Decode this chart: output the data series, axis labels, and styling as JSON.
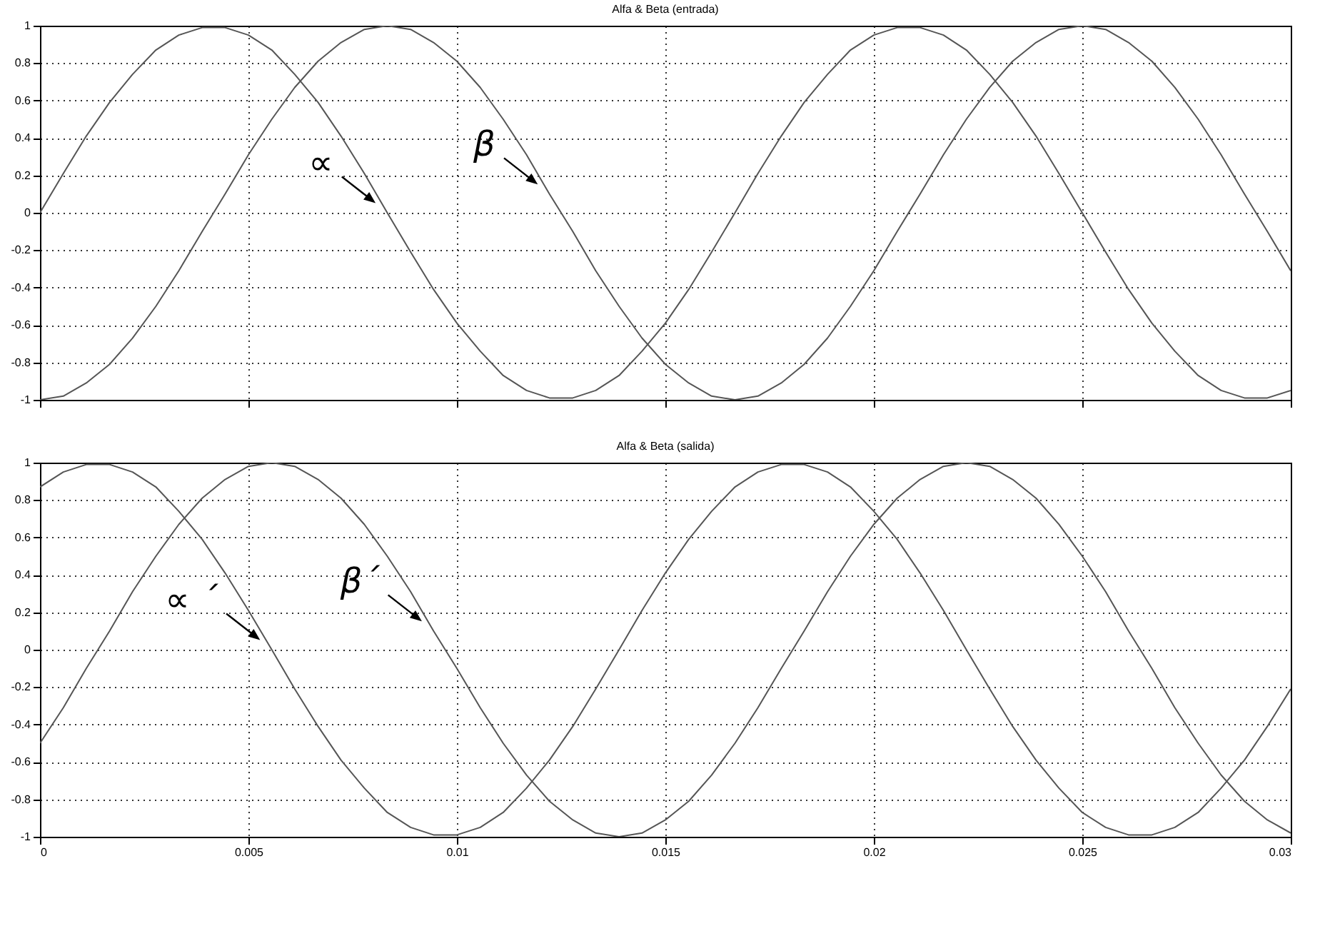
{
  "chart_data": [
    {
      "type": "line",
      "title": "Alfa & Beta (entrada)",
      "x": [
        0,
        0.00056,
        0.00111,
        0.00167,
        0.00222,
        0.00278,
        0.00333,
        0.00389,
        0.00444,
        0.005,
        0.00556,
        0.00611,
        0.00667,
        0.00722,
        0.00778,
        0.00833,
        0.00889,
        0.00944,
        0.01,
        0.01056,
        0.01111,
        0.01167,
        0.01222,
        0.01278,
        0.01333,
        0.01389,
        0.01444,
        0.015,
        0.01556,
        0.01611,
        0.01667,
        0.01722,
        0.01778,
        0.01833,
        0.01889,
        0.01944,
        0.02,
        0.02056,
        0.02111,
        0.02167,
        0.02222,
        0.02278,
        0.02333,
        0.02389,
        0.02444,
        0.025,
        0.02556,
        0.02611,
        0.02667,
        0.02722,
        0.02778,
        0.02833,
        0.02889,
        0.02944,
        0.03
      ],
      "series": [
        {
          "name": "∝",
          "color": "#555555",
          "values": [
            0,
            0.21,
            0.41,
            0.59,
            0.74,
            0.87,
            0.95,
            0.99,
            0.99,
            0.95,
            0.87,
            0.74,
            0.59,
            0.41,
            0.21,
            0,
            -0.21,
            -0.41,
            -0.59,
            -0.74,
            -0.87,
            -0.95,
            -0.99,
            -0.99,
            -0.95,
            -0.87,
            -0.74,
            -0.59,
            -0.41,
            -0.21,
            0,
            0.21,
            0.41,
            0.59,
            0.74,
            0.87,
            0.95,
            0.99,
            0.99,
            0.95,
            0.87,
            0.74,
            0.59,
            0.41,
            0.21,
            0,
            -0.21,
            -0.41,
            -0.59,
            -0.74,
            -0.87,
            -0.95,
            -0.99,
            -0.99,
            -0.95
          ]
        },
        {
          "name": "β",
          "color": "#555555",
          "values": [
            -1,
            -0.98,
            -0.91,
            -0.81,
            -0.67,
            -0.5,
            -0.31,
            -0.1,
            0.1,
            0.31,
            0.5,
            0.67,
            0.81,
            0.91,
            0.98,
            1,
            0.98,
            0.91,
            0.81,
            0.67,
            0.5,
            0.31,
            0.1,
            -0.1,
            -0.31,
            -0.5,
            -0.67,
            -0.81,
            -0.91,
            -0.98,
            -1,
            -0.98,
            -0.91,
            -0.81,
            -0.67,
            -0.5,
            -0.31,
            -0.1,
            0.1,
            0.31,
            0.5,
            0.67,
            0.81,
            0.91,
            0.98,
            1,
            0.98,
            0.91,
            0.81,
            0.67,
            0.5,
            0.31,
            0.1,
            -0.1,
            -0.31
          ]
        }
      ],
      "xlim": [
        0,
        0.03
      ],
      "ylim": [
        -1,
        1
      ],
      "xticks": [
        0,
        0.005,
        0.01,
        0.015,
        0.02,
        0.025,
        0.03
      ],
      "yticks": [
        -1,
        -0.8,
        -0.6,
        -0.4,
        -0.2,
        0,
        0.2,
        0.4,
        0.6,
        0.8,
        1
      ],
      "grid": true,
      "line_style": "solid",
      "tick_labels": "y"
    },
    {
      "type": "line",
      "title": "Alfa & Beta (salida)",
      "x": [
        0,
        0.00056,
        0.00111,
        0.00167,
        0.00222,
        0.00278,
        0.00333,
        0.00389,
        0.00444,
        0.005,
        0.00556,
        0.00611,
        0.00667,
        0.00722,
        0.00778,
        0.00833,
        0.00889,
        0.00944,
        0.01,
        0.01056,
        0.01111,
        0.01167,
        0.01222,
        0.01278,
        0.01333,
        0.01389,
        0.01444,
        0.015,
        0.01556,
        0.01611,
        0.01667,
        0.01722,
        0.01778,
        0.01833,
        0.01889,
        0.01944,
        0.02,
        0.02056,
        0.02111,
        0.02167,
        0.02222,
        0.02278,
        0.02333,
        0.02389,
        0.02444,
        0.025,
        0.02556,
        0.02611,
        0.02667,
        0.02722,
        0.02778,
        0.02833,
        0.02889,
        0.02944,
        0.03
      ],
      "series": [
        {
          "name": "∝ ´",
          "color": "#555555",
          "values": [
            0.87,
            0.95,
            0.99,
            0.99,
            0.95,
            0.87,
            0.74,
            0.59,
            0.41,
            0.21,
            0,
            -0.21,
            -0.41,
            -0.59,
            -0.74,
            -0.87,
            -0.95,
            -0.99,
            -0.99,
            -0.95,
            -0.87,
            -0.74,
            -0.59,
            -0.41,
            -0.21,
            0,
            0.21,
            0.41,
            0.59,
            0.74,
            0.87,
            0.95,
            0.99,
            0.99,
            0.95,
            0.87,
            0.74,
            0.59,
            0.41,
            0.21,
            0,
            -0.21,
            -0.41,
            -0.59,
            -0.74,
            -0.87,
            -0.95,
            -0.99,
            -0.99,
            -0.95,
            -0.87,
            -0.74,
            -0.59,
            -0.41,
            -0.21
          ]
        },
        {
          "name": "β´",
          "color": "#555555",
          "values": [
            -0.5,
            -0.31,
            -0.1,
            0.1,
            0.31,
            0.5,
            0.67,
            0.81,
            0.91,
            0.98,
            1,
            0.98,
            0.91,
            0.81,
            0.67,
            0.5,
            0.31,
            0.1,
            -0.1,
            -0.31,
            -0.5,
            -0.67,
            -0.81,
            -0.91,
            -0.98,
            -1,
            -0.98,
            -0.91,
            -0.81,
            -0.67,
            -0.5,
            -0.31,
            -0.1,
            0.1,
            0.31,
            0.5,
            0.67,
            0.81,
            0.91,
            0.98,
            1,
            0.98,
            0.91,
            0.81,
            0.67,
            0.5,
            0.31,
            0.1,
            -0.1,
            -0.31,
            -0.5,
            -0.67,
            -0.81,
            -0.91,
            -0.98
          ]
        }
      ],
      "xlim": [
        0,
        0.03
      ],
      "ylim": [
        -1,
        1
      ],
      "xticks": [
        0,
        0.005,
        0.01,
        0.015,
        0.02,
        0.025,
        0.03
      ],
      "yticks": [
        -1,
        -0.8,
        -0.6,
        -0.4,
        -0.2,
        0,
        0.2,
        0.4,
        0.6,
        0.8,
        1
      ],
      "grid": true,
      "line_style": "solid"
    }
  ]
}
